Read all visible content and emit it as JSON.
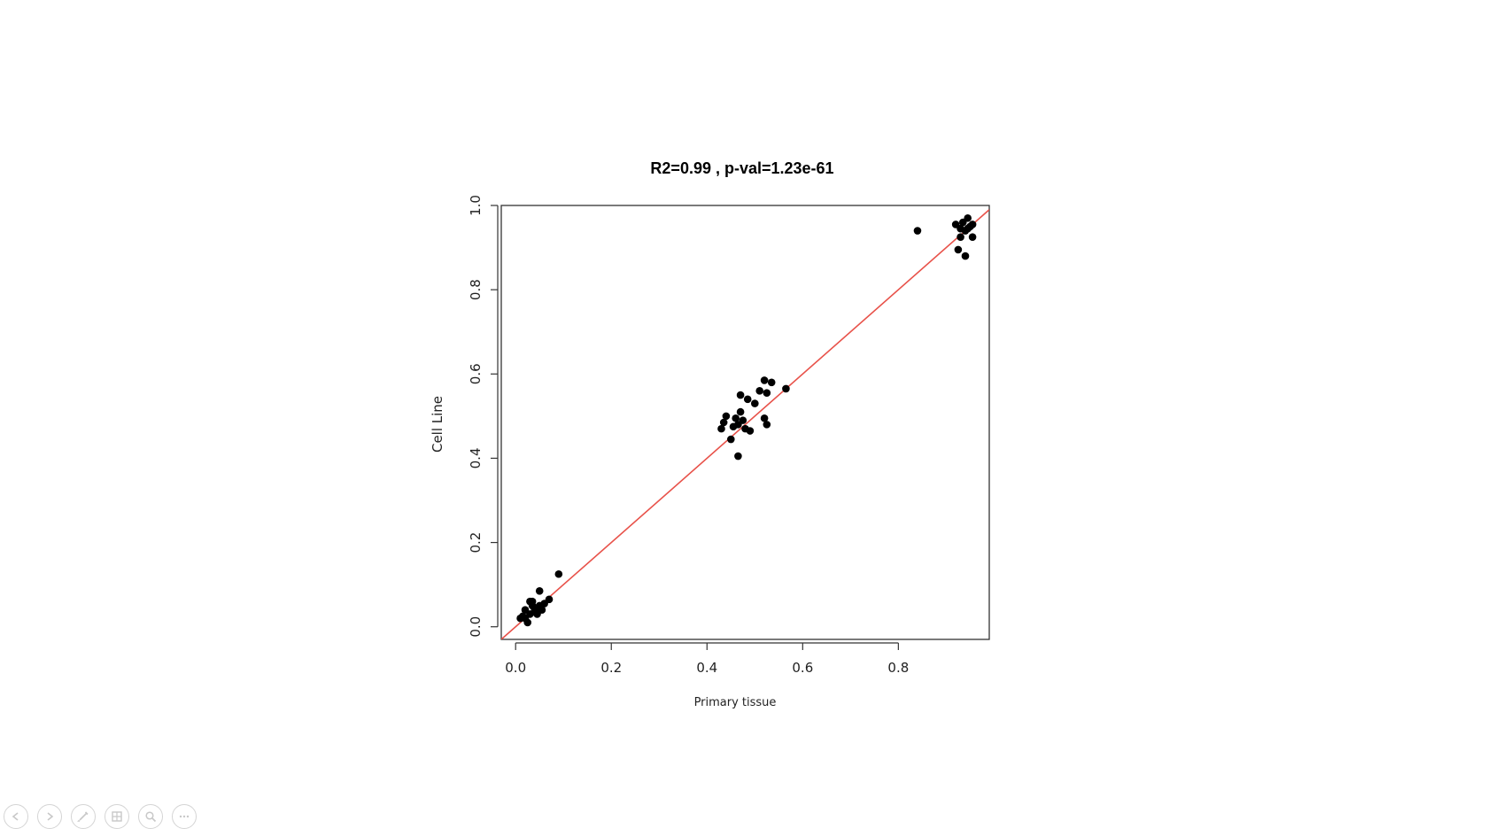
{
  "chart_data": {
    "type": "scatter",
    "title": "R2=0.99 , p-val=1.23e-61",
    "xlabel": "Primary tissue",
    "ylabel": "Cell Line",
    "xlim": [
      -0.03,
      0.99
    ],
    "ylim": [
      -0.03,
      1.0
    ],
    "x_ticks": [
      0.0,
      0.2,
      0.4,
      0.6,
      0.8
    ],
    "x_tick_labels": [
      "0.0",
      "0.2",
      "0.4",
      "0.6",
      "0.8"
    ],
    "y_ticks": [
      0.0,
      0.2,
      0.4,
      0.6,
      0.8,
      1.0
    ],
    "y_tick_labels": [
      "0.0",
      "0.2",
      "0.4",
      "0.6",
      "0.8",
      "1.0"
    ],
    "grid": false,
    "fit_line": {
      "x": [
        -0.03,
        0.99
      ],
      "y": [
        -0.03,
        0.99
      ],
      "color": "#e8524a"
    },
    "point_color": "#000000",
    "series": [
      {
        "points": [
          [
            0.01,
            0.02
          ],
          [
            0.015,
            0.025
          ],
          [
            0.02,
            0.02
          ],
          [
            0.025,
            0.01
          ],
          [
            0.03,
            0.03
          ],
          [
            0.02,
            0.04
          ],
          [
            0.035,
            0.05
          ],
          [
            0.03,
            0.06
          ],
          [
            0.04,
            0.04
          ],
          [
            0.045,
            0.03
          ],
          [
            0.05,
            0.05
          ],
          [
            0.055,
            0.04
          ],
          [
            0.05,
            0.085
          ],
          [
            0.06,
            0.055
          ],
          [
            0.07,
            0.065
          ],
          [
            0.09,
            0.125
          ],
          [
            0.035,
            0.06
          ],
          [
            0.04,
            0.035
          ],
          [
            0.43,
            0.47
          ],
          [
            0.435,
            0.485
          ],
          [
            0.44,
            0.5
          ],
          [
            0.45,
            0.445
          ],
          [
            0.455,
            0.475
          ],
          [
            0.46,
            0.495
          ],
          [
            0.465,
            0.48
          ],
          [
            0.47,
            0.51
          ],
          [
            0.465,
            0.405
          ],
          [
            0.47,
            0.55
          ],
          [
            0.475,
            0.49
          ],
          [
            0.48,
            0.47
          ],
          [
            0.485,
            0.54
          ],
          [
            0.49,
            0.465
          ],
          [
            0.5,
            0.53
          ],
          [
            0.51,
            0.56
          ],
          [
            0.52,
            0.495
          ],
          [
            0.525,
            0.48
          ],
          [
            0.52,
            0.585
          ],
          [
            0.525,
            0.555
          ],
          [
            0.535,
            0.58
          ],
          [
            0.565,
            0.565
          ],
          [
            0.84,
            0.94
          ],
          [
            0.92,
            0.955
          ],
          [
            0.925,
            0.895
          ],
          [
            0.93,
            0.945
          ],
          [
            0.935,
            0.96
          ],
          [
            0.94,
            0.88
          ],
          [
            0.94,
            0.94
          ],
          [
            0.945,
            0.97
          ],
          [
            0.95,
            0.95
          ],
          [
            0.955,
            0.925
          ],
          [
            0.93,
            0.925
          ],
          [
            0.955,
            0.955
          ],
          [
            0.945,
            0.945
          ]
        ]
      }
    ]
  },
  "controls": [
    {
      "icon": "prev-slide-icon"
    },
    {
      "icon": "next-slide-icon"
    },
    {
      "icon": "pen-icon"
    },
    {
      "icon": "slides-grid-icon"
    },
    {
      "icon": "zoom-icon"
    },
    {
      "icon": "more-icon"
    }
  ]
}
